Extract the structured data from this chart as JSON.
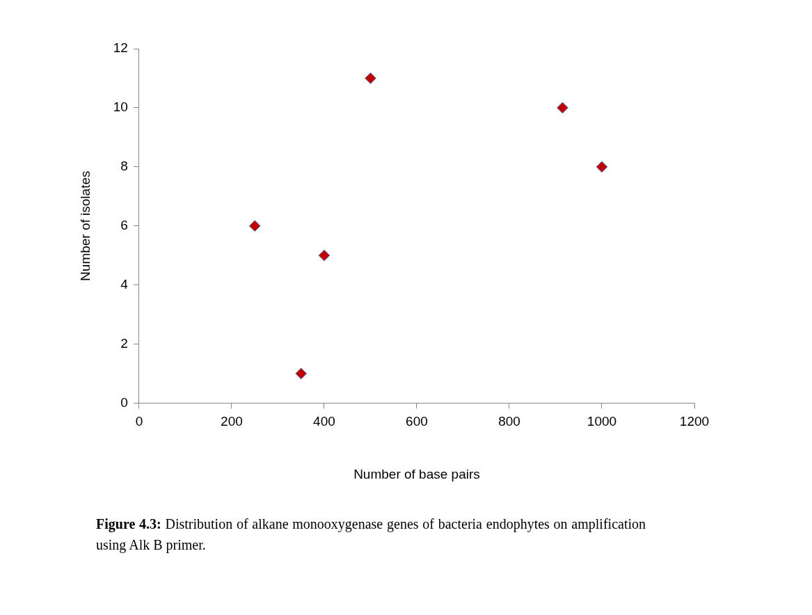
{
  "chart_data": {
    "type": "scatter",
    "xlabel": "Number of base pairs",
    "ylabel": "Number of isolates",
    "x": [
      250,
      350,
      400,
      500,
      915,
      1000
    ],
    "series": [
      {
        "color": "#c00000",
        "values": [
          6,
          1,
          5,
          11,
          10,
          8
        ]
      }
    ],
    "xlim": [
      0,
      1200
    ],
    "xticks": [
      0,
      200,
      400,
      600,
      800,
      1000,
      1200
    ],
    "ylim": [
      0,
      12
    ],
    "yticks": [
      0,
      2,
      4,
      6,
      8,
      10,
      12
    ],
    "grid": false,
    "legend": false,
    "marker": "diamond",
    "annotations": [
      "Figure 4.3: Distribution of alkane monooxygenase genes of bacteria endophytes on amplification using Alk B primer."
    ]
  }
}
